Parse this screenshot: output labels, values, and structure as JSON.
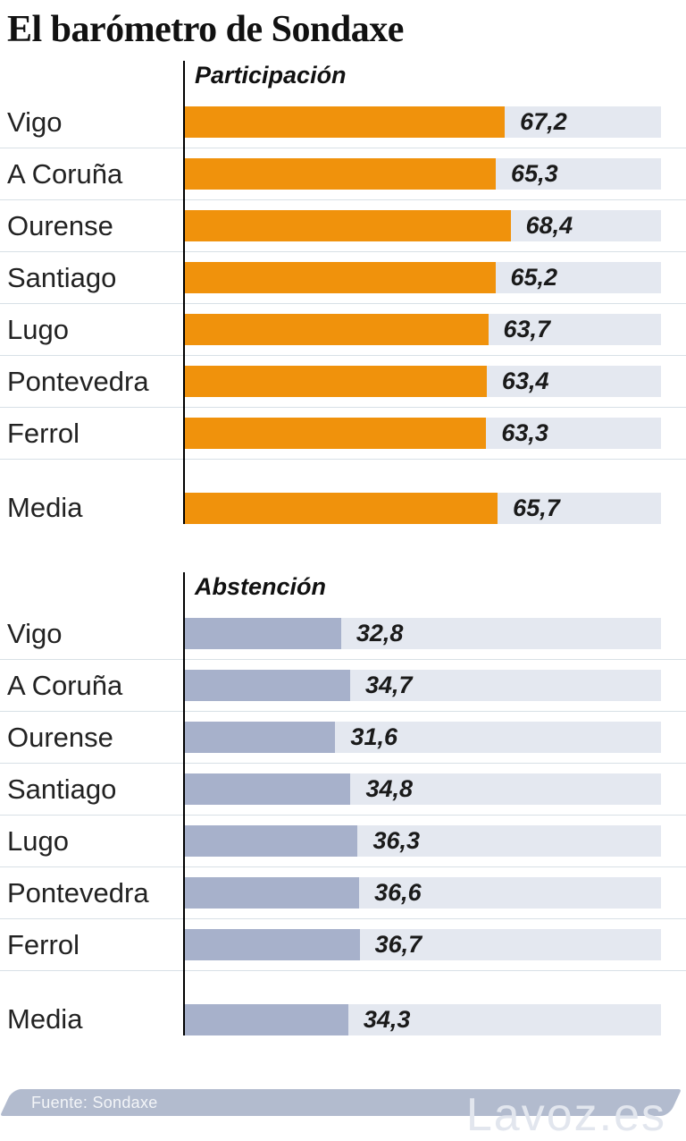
{
  "title": "El barómetro de Sondaxe",
  "footer": {
    "source": "Fuente: Sondaxe",
    "watermark": "Lavoz.es"
  },
  "colors": {
    "participation_bar": "#F0920C",
    "abstention_bar": "#A7B1CB",
    "track": "#E4E8F0",
    "divider": "#D8E0E6",
    "axis": "#000000",
    "footer_bar": "#B2BBCE",
    "watermark_text": "#E2E6EE"
  },
  "chart_data": [
    {
      "type": "bar",
      "orientation": "horizontal",
      "title": "Participación",
      "categories": [
        "Vigo",
        "A Coruña",
        "Ourense",
        "Santiago",
        "Lugo",
        "Pontevedra",
        "Ferrol",
        "Media"
      ],
      "values": [
        67.2,
        65.3,
        68.4,
        65.2,
        63.7,
        63.4,
        63.3,
        65.7
      ],
      "value_labels": [
        "67,2",
        "65,3",
        "68,4",
        "65,2",
        "63,7",
        "63,4",
        "63,3",
        "65,7"
      ],
      "xlim": [
        0,
        100
      ],
      "bar_color_key": "participation_bar",
      "separated_index": 7,
      "grid": false,
      "legend": false
    },
    {
      "type": "bar",
      "orientation": "horizontal",
      "title": "Abstención",
      "categories": [
        "Vigo",
        "A Coruña",
        "Ourense",
        "Santiago",
        "Lugo",
        "Pontevedra",
        "Ferrol",
        "Media"
      ],
      "values": [
        32.8,
        34.7,
        31.6,
        34.8,
        36.3,
        36.6,
        36.7,
        34.3
      ],
      "value_labels": [
        "32,8",
        "34,7",
        "31,6",
        "34,8",
        "36,3",
        "36,6",
        "36,7",
        "34,3"
      ],
      "xlim": [
        0,
        100
      ],
      "bar_color_key": "abstention_bar",
      "separated_index": 7,
      "grid": false,
      "legend": false
    }
  ]
}
